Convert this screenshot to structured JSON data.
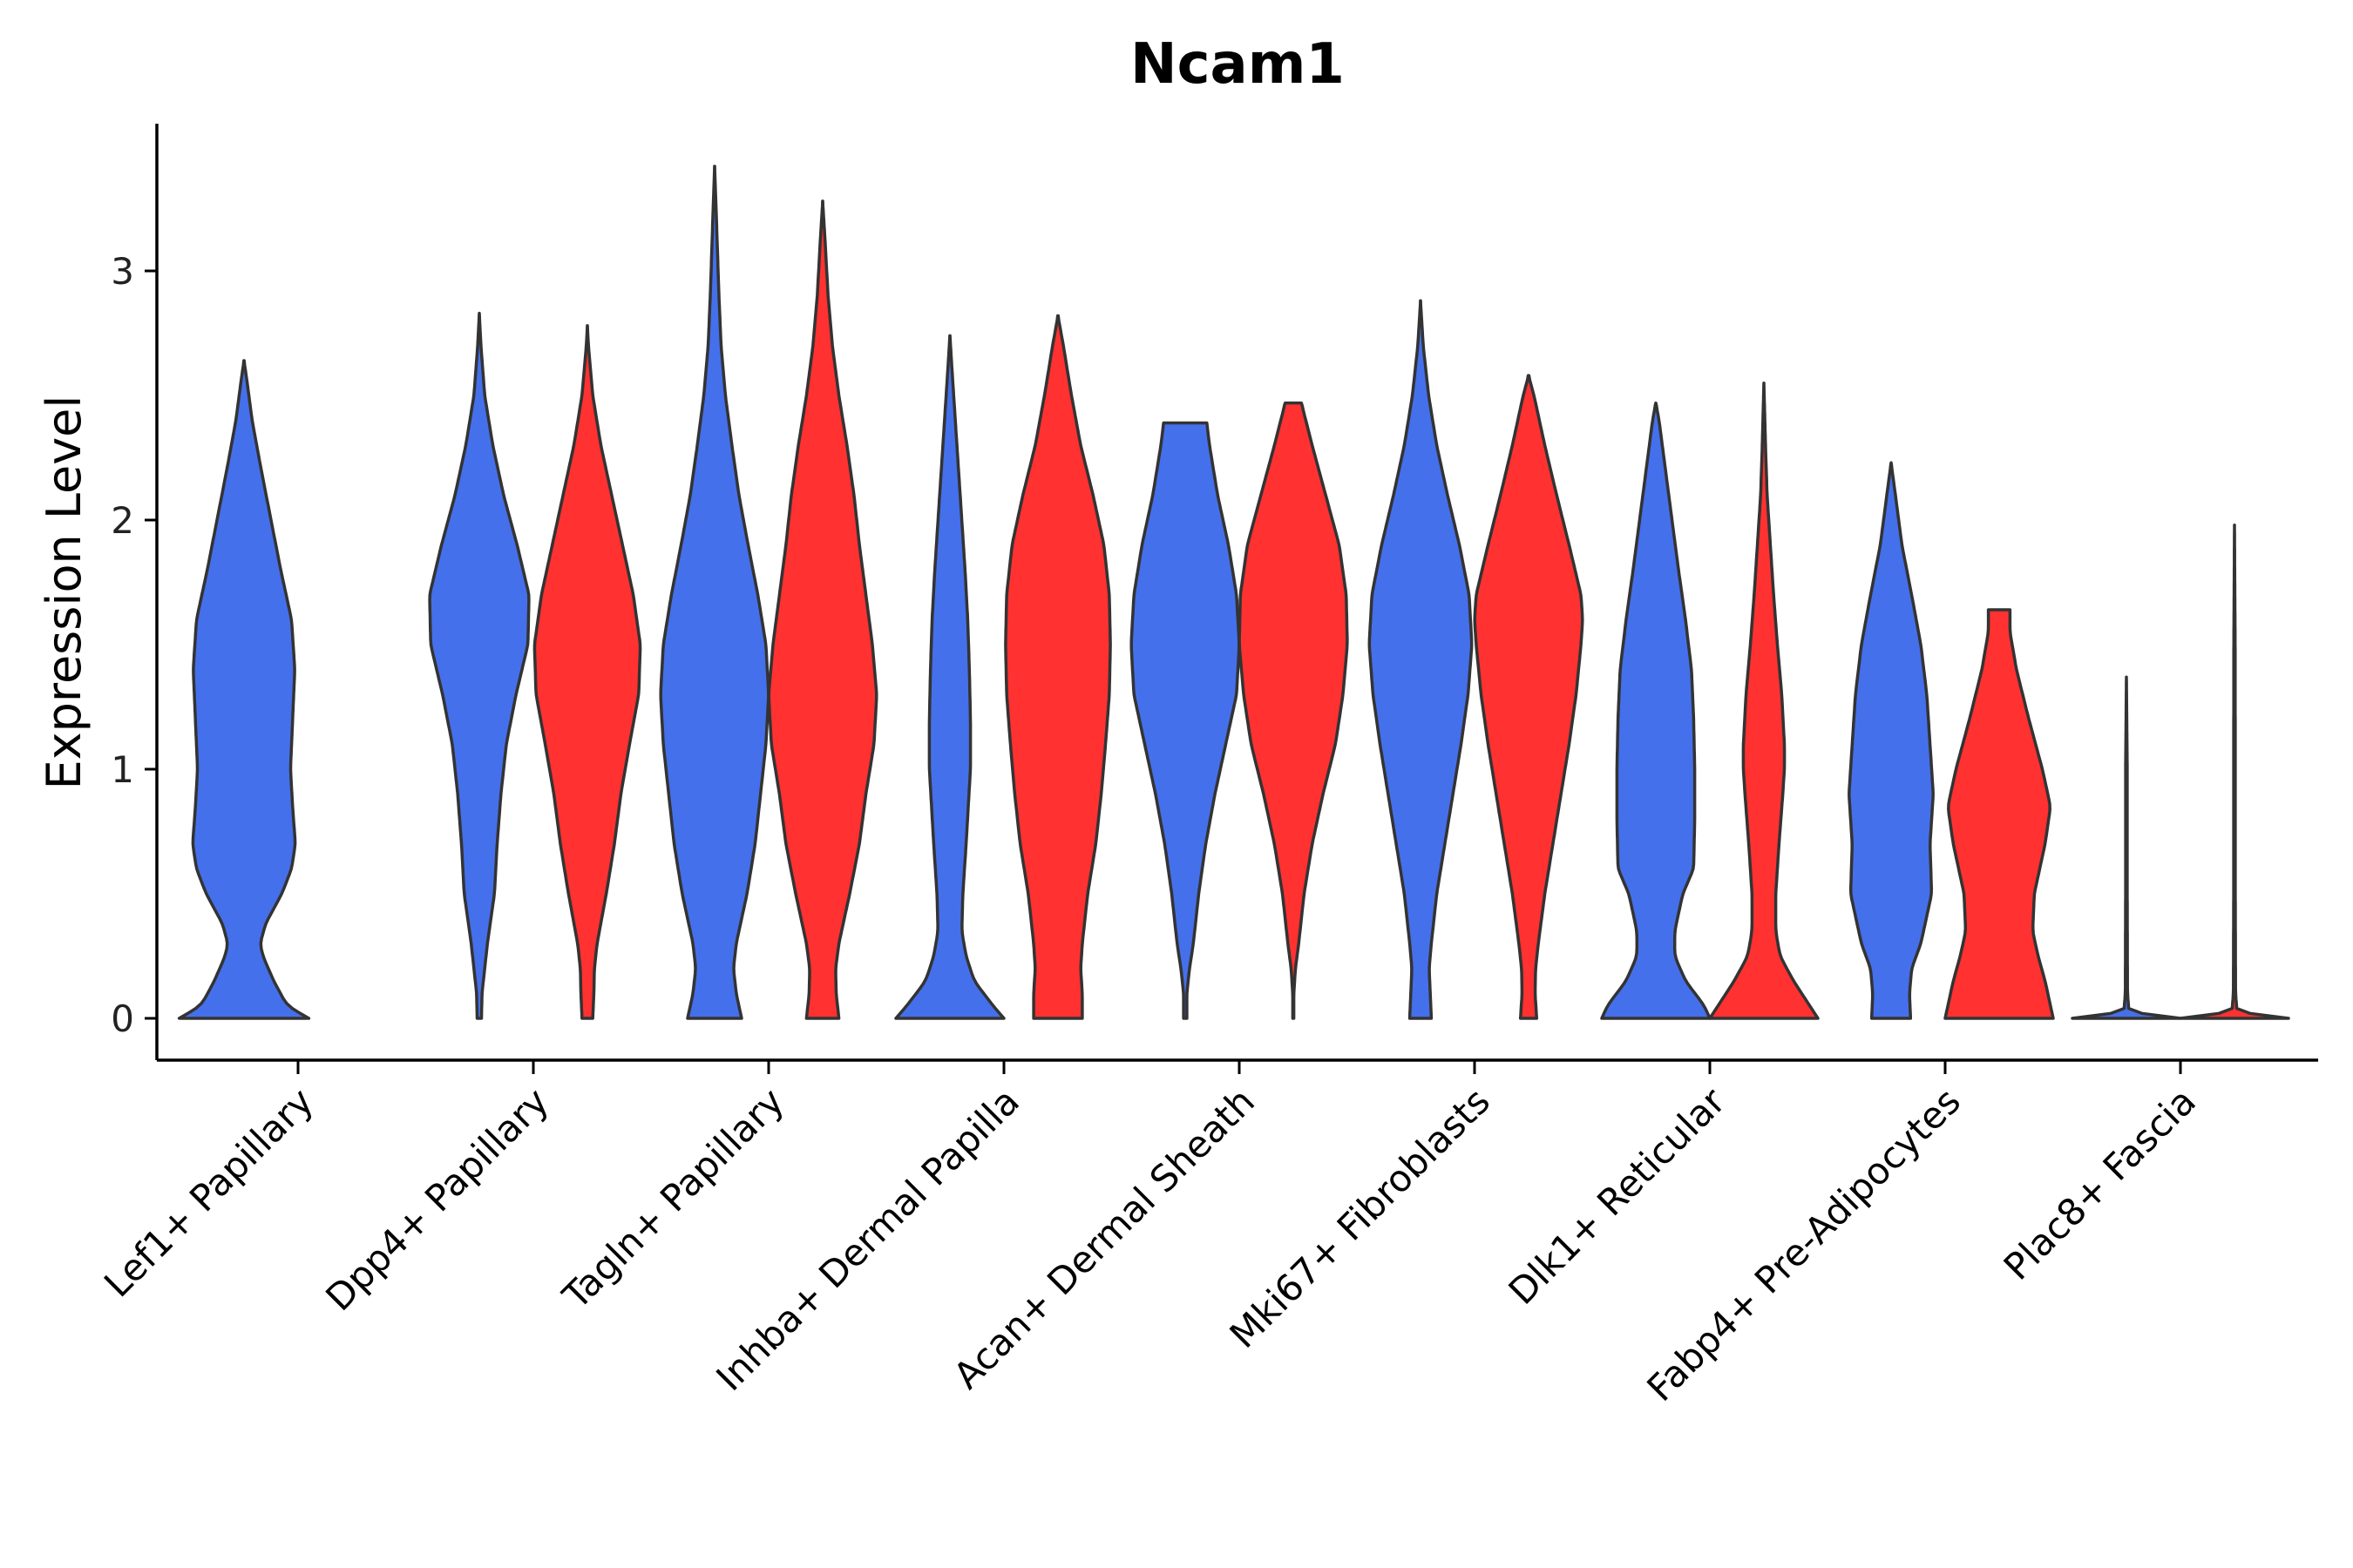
{
  "chart_data": {
    "type": "violin",
    "title": "Ncam1",
    "xlabel": "",
    "ylabel": "Expression Level",
    "ylim": [
      -0.17,
      3.6
    ],
    "yticks": [
      0,
      1,
      2,
      3
    ],
    "colors": {
      "group1": "#4570EB",
      "group2": "#FF3131"
    },
    "categories": [
      "Lef1+ Papillary",
      "Dpp4+ Papillary",
      "Tagln+ Papillary",
      "Inhba+ Dermal Papilla",
      "Acan+ Dermal Sheath",
      "Mki67+ Fibroblasts",
      "Dlk1+ Reticular",
      "Fabp4+ Pre-Adipocytes",
      "Plac8+ Fascia"
    ],
    "violins": [
      {
        "category": 0,
        "group": "group1",
        "max": 2.64,
        "profile": [
          [
            0,
            1.2
          ],
          [
            0.05,
            0.8
          ],
          [
            0.15,
            0.55
          ],
          [
            0.25,
            0.35
          ],
          [
            0.3,
            0.3
          ],
          [
            0.38,
            0.4
          ],
          [
            0.5,
            0.7
          ],
          [
            0.6,
            0.88
          ],
          [
            0.7,
            0.95
          ],
          [
            0.85,
            0.9
          ],
          [
            1.0,
            0.86
          ],
          [
            1.2,
            0.9
          ],
          [
            1.4,
            0.94
          ],
          [
            1.6,
            0.88
          ],
          [
            1.8,
            0.68
          ],
          [
            2.0,
            0.5
          ],
          [
            2.2,
            0.32
          ],
          [
            2.4,
            0.15
          ],
          [
            2.55,
            0.06
          ],
          [
            2.64,
            0
          ]
        ]
      },
      {
        "category": 1,
        "group": "group1",
        "max": 2.83,
        "profile": [
          [
            0,
            0.04
          ],
          [
            0.1,
            0.05
          ],
          [
            0.2,
            0.1
          ],
          [
            0.3,
            0.15
          ],
          [
            0.5,
            0.28
          ],
          [
            0.7,
            0.33
          ],
          [
            0.9,
            0.4
          ],
          [
            1.1,
            0.5
          ],
          [
            1.3,
            0.68
          ],
          [
            1.5,
            0.9
          ],
          [
            1.7,
            0.92
          ],
          [
            1.9,
            0.7
          ],
          [
            2.1,
            0.45
          ],
          [
            2.3,
            0.25
          ],
          [
            2.5,
            0.1
          ],
          [
            2.7,
            0.03
          ],
          [
            2.83,
            0
          ]
        ]
      },
      {
        "category": 1,
        "group": "group2",
        "max": 2.78,
        "profile": [
          [
            0,
            0.1
          ],
          [
            0.1,
            0.12
          ],
          [
            0.2,
            0.13
          ],
          [
            0.3,
            0.18
          ],
          [
            0.5,
            0.35
          ],
          [
            0.7,
            0.5
          ],
          [
            0.9,
            0.62
          ],
          [
            1.1,
            0.78
          ],
          [
            1.3,
            0.95
          ],
          [
            1.5,
            0.98
          ],
          [
            1.7,
            0.85
          ],
          [
            1.9,
            0.65
          ],
          [
            2.1,
            0.45
          ],
          [
            2.3,
            0.25
          ],
          [
            2.5,
            0.1
          ],
          [
            2.7,
            0.02
          ],
          [
            2.78,
            0
          ]
        ]
      },
      {
        "category": 2,
        "group": "group1",
        "max": 3.42,
        "profile": [
          [
            0,
            0.5
          ],
          [
            0.1,
            0.4
          ],
          [
            0.2,
            0.35
          ],
          [
            0.3,
            0.4
          ],
          [
            0.5,
            0.6
          ],
          [
            0.7,
            0.75
          ],
          [
            0.9,
            0.85
          ],
          [
            1.1,
            0.95
          ],
          [
            1.3,
            1.0
          ],
          [
            1.5,
            0.95
          ],
          [
            1.7,
            0.8
          ],
          [
            1.9,
            0.62
          ],
          [
            2.1,
            0.45
          ],
          [
            2.3,
            0.32
          ],
          [
            2.5,
            0.2
          ],
          [
            2.7,
            0.12
          ],
          [
            2.9,
            0.08
          ],
          [
            3.1,
            0.05
          ],
          [
            3.3,
            0.02
          ],
          [
            3.42,
            0
          ]
        ]
      },
      {
        "category": 2,
        "group": "group2",
        "max": 3.28,
        "profile": [
          [
            0,
            0.3
          ],
          [
            0.1,
            0.25
          ],
          [
            0.2,
            0.24
          ],
          [
            0.3,
            0.3
          ],
          [
            0.5,
            0.5
          ],
          [
            0.7,
            0.68
          ],
          [
            0.9,
            0.8
          ],
          [
            1.1,
            0.95
          ],
          [
            1.3,
            1.0
          ],
          [
            1.5,
            0.92
          ],
          [
            1.7,
            0.8
          ],
          [
            1.9,
            0.68
          ],
          [
            2.1,
            0.58
          ],
          [
            2.3,
            0.45
          ],
          [
            2.5,
            0.3
          ],
          [
            2.7,
            0.18
          ],
          [
            2.9,
            0.1
          ],
          [
            3.1,
            0.05
          ],
          [
            3.28,
            0
          ]
        ]
      },
      {
        "category": 3,
        "group": "group1",
        "max": 2.74,
        "profile": [
          [
            0,
            1.0
          ],
          [
            0.05,
            0.8
          ],
          [
            0.15,
            0.45
          ],
          [
            0.25,
            0.3
          ],
          [
            0.35,
            0.22
          ],
          [
            0.5,
            0.24
          ],
          [
            0.7,
            0.3
          ],
          [
            1.0,
            0.38
          ],
          [
            1.2,
            0.38
          ],
          [
            1.4,
            0.36
          ],
          [
            1.6,
            0.33
          ],
          [
            1.8,
            0.28
          ],
          [
            2.0,
            0.22
          ],
          [
            2.2,
            0.16
          ],
          [
            2.4,
            0.1
          ],
          [
            2.6,
            0.04
          ],
          [
            2.74,
            0
          ]
        ]
      },
      {
        "category": 3,
        "group": "group2",
        "max": 2.82,
        "profile": [
          [
            0,
            0.45
          ],
          [
            0.1,
            0.45
          ],
          [
            0.2,
            0.42
          ],
          [
            0.3,
            0.45
          ],
          [
            0.5,
            0.55
          ],
          [
            0.7,
            0.7
          ],
          [
            0.9,
            0.8
          ],
          [
            1.1,
            0.88
          ],
          [
            1.3,
            0.95
          ],
          [
            1.5,
            0.97
          ],
          [
            1.7,
            0.95
          ],
          [
            1.9,
            0.85
          ],
          [
            2.1,
            0.65
          ],
          [
            2.3,
            0.42
          ],
          [
            2.5,
            0.25
          ],
          [
            2.7,
            0.1
          ],
          [
            2.82,
            0
          ]
        ]
      },
      {
        "category": 4,
        "group": "group1",
        "max": 2.39,
        "profile": [
          [
            0,
            0.03
          ],
          [
            0.1,
            0.03
          ],
          [
            0.2,
            0.08
          ],
          [
            0.3,
            0.15
          ],
          [
            0.5,
            0.25
          ],
          [
            0.7,
            0.38
          ],
          [
            0.9,
            0.55
          ],
          [
            1.1,
            0.75
          ],
          [
            1.3,
            0.95
          ],
          [
            1.5,
            1.0
          ],
          [
            1.7,
            0.95
          ],
          [
            1.9,
            0.8
          ],
          [
            2.1,
            0.6
          ],
          [
            2.3,
            0.45
          ],
          [
            2.39,
            0.4
          ]
        ]
      },
      {
        "category": 4,
        "group": "group2",
        "max": 2.47,
        "profile": [
          [
            0,
            0.01
          ],
          [
            0.1,
            0.01
          ],
          [
            0.2,
            0.04
          ],
          [
            0.3,
            0.1
          ],
          [
            0.5,
            0.2
          ],
          [
            0.7,
            0.35
          ],
          [
            0.9,
            0.55
          ],
          [
            1.1,
            0.78
          ],
          [
            1.3,
            0.92
          ],
          [
            1.5,
            1.0
          ],
          [
            1.7,
            0.98
          ],
          [
            1.9,
            0.85
          ],
          [
            2.1,
            0.6
          ],
          [
            2.3,
            0.35
          ],
          [
            2.47,
            0.15
          ]
        ]
      },
      {
        "category": 5,
        "group": "group1",
        "max": 2.88,
        "profile": [
          [
            0,
            0.2
          ],
          [
            0.1,
            0.18
          ],
          [
            0.2,
            0.16
          ],
          [
            0.3,
            0.2
          ],
          [
            0.5,
            0.3
          ],
          [
            0.7,
            0.45
          ],
          [
            0.9,
            0.6
          ],
          [
            1.1,
            0.75
          ],
          [
            1.3,
            0.88
          ],
          [
            1.5,
            0.95
          ],
          [
            1.7,
            0.9
          ],
          [
            1.9,
            0.72
          ],
          [
            2.1,
            0.5
          ],
          [
            2.3,
            0.3
          ],
          [
            2.5,
            0.15
          ],
          [
            2.7,
            0.05
          ],
          [
            2.88,
            0
          ]
        ]
      },
      {
        "category": 5,
        "group": "group2",
        "max": 2.58,
        "profile": [
          [
            0,
            0.15
          ],
          [
            0.1,
            0.12
          ],
          [
            0.2,
            0.13
          ],
          [
            0.3,
            0.18
          ],
          [
            0.5,
            0.3
          ],
          [
            0.7,
            0.45
          ],
          [
            0.9,
            0.6
          ],
          [
            1.1,
            0.75
          ],
          [
            1.3,
            0.88
          ],
          [
            1.5,
            0.97
          ],
          [
            1.6,
            1.0
          ],
          [
            1.7,
            0.97
          ],
          [
            1.9,
            0.75
          ],
          [
            2.1,
            0.52
          ],
          [
            2.3,
            0.3
          ],
          [
            2.5,
            0.1
          ],
          [
            2.58,
            0
          ]
        ]
      },
      {
        "category": 6,
        "group": "group1",
        "max": 2.47,
        "profile": [
          [
            0,
            1.0
          ],
          [
            0.05,
            0.9
          ],
          [
            0.15,
            0.55
          ],
          [
            0.25,
            0.35
          ],
          [
            0.35,
            0.35
          ],
          [
            0.5,
            0.5
          ],
          [
            0.6,
            0.7
          ],
          [
            0.8,
            0.72
          ],
          [
            1.0,
            0.72
          ],
          [
            1.2,
            0.7
          ],
          [
            1.4,
            0.66
          ],
          [
            1.6,
            0.55
          ],
          [
            1.8,
            0.42
          ],
          [
            2.0,
            0.3
          ],
          [
            2.2,
            0.18
          ],
          [
            2.4,
            0.06
          ],
          [
            2.47,
            0
          ]
        ]
      },
      {
        "category": 6,
        "group": "group2",
        "max": 2.55,
        "profile": [
          [
            0,
            1.0
          ],
          [
            0.05,
            0.85
          ],
          [
            0.15,
            0.55
          ],
          [
            0.25,
            0.3
          ],
          [
            0.35,
            0.22
          ],
          [
            0.5,
            0.22
          ],
          [
            0.7,
            0.28
          ],
          [
            0.9,
            0.35
          ],
          [
            1.0,
            0.38
          ],
          [
            1.1,
            0.38
          ],
          [
            1.3,
            0.33
          ],
          [
            1.5,
            0.25
          ],
          [
            1.7,
            0.18
          ],
          [
            1.9,
            0.12
          ],
          [
            2.1,
            0.06
          ],
          [
            2.3,
            0.03
          ],
          [
            2.55,
            0
          ]
        ]
      },
      {
        "category": 7,
        "group": "group1",
        "max": 2.23,
        "profile": [
          [
            0,
            0.36
          ],
          [
            0.1,
            0.34
          ],
          [
            0.2,
            0.38
          ],
          [
            0.3,
            0.55
          ],
          [
            0.5,
            0.75
          ],
          [
            0.7,
            0.72
          ],
          [
            0.9,
            0.78
          ],
          [
            1.1,
            0.72
          ],
          [
            1.3,
            0.66
          ],
          [
            1.5,
            0.55
          ],
          [
            1.7,
            0.38
          ],
          [
            1.9,
            0.2
          ],
          [
            2.1,
            0.08
          ],
          [
            2.23,
            0
          ]
        ]
      },
      {
        "category": 7,
        "group": "group2",
        "max": 1.64,
        "profile": [
          [
            0,
            1.0
          ],
          [
            0.05,
            0.95
          ],
          [
            0.15,
            0.85
          ],
          [
            0.25,
            0.72
          ],
          [
            0.35,
            0.62
          ],
          [
            0.5,
            0.65
          ],
          [
            0.7,
            0.85
          ],
          [
            0.85,
            0.95
          ],
          [
            1.0,
            0.8
          ],
          [
            1.2,
            0.55
          ],
          [
            1.4,
            0.32
          ],
          [
            1.55,
            0.2
          ],
          [
            1.64,
            0.2
          ]
        ]
      },
      {
        "category": 8,
        "group": "group1",
        "max": 1.37,
        "profile": [
          [
            0,
            1.0
          ],
          [
            0.02,
            0.05
          ],
          [
            0.1,
            0.02
          ],
          [
            0.5,
            0.015
          ],
          [
            1.0,
            0.015
          ],
          [
            1.37,
            0
          ]
        ]
      },
      {
        "category": 8,
        "group": "group2",
        "max": 1.98,
        "profile": [
          [
            0,
            1.0
          ],
          [
            0.02,
            0.05
          ],
          [
            0.1,
            0.02
          ],
          [
            0.5,
            0.015
          ],
          [
            1.0,
            0.015
          ],
          [
            1.5,
            0.012
          ],
          [
            1.98,
            0
          ]
        ]
      }
    ]
  }
}
